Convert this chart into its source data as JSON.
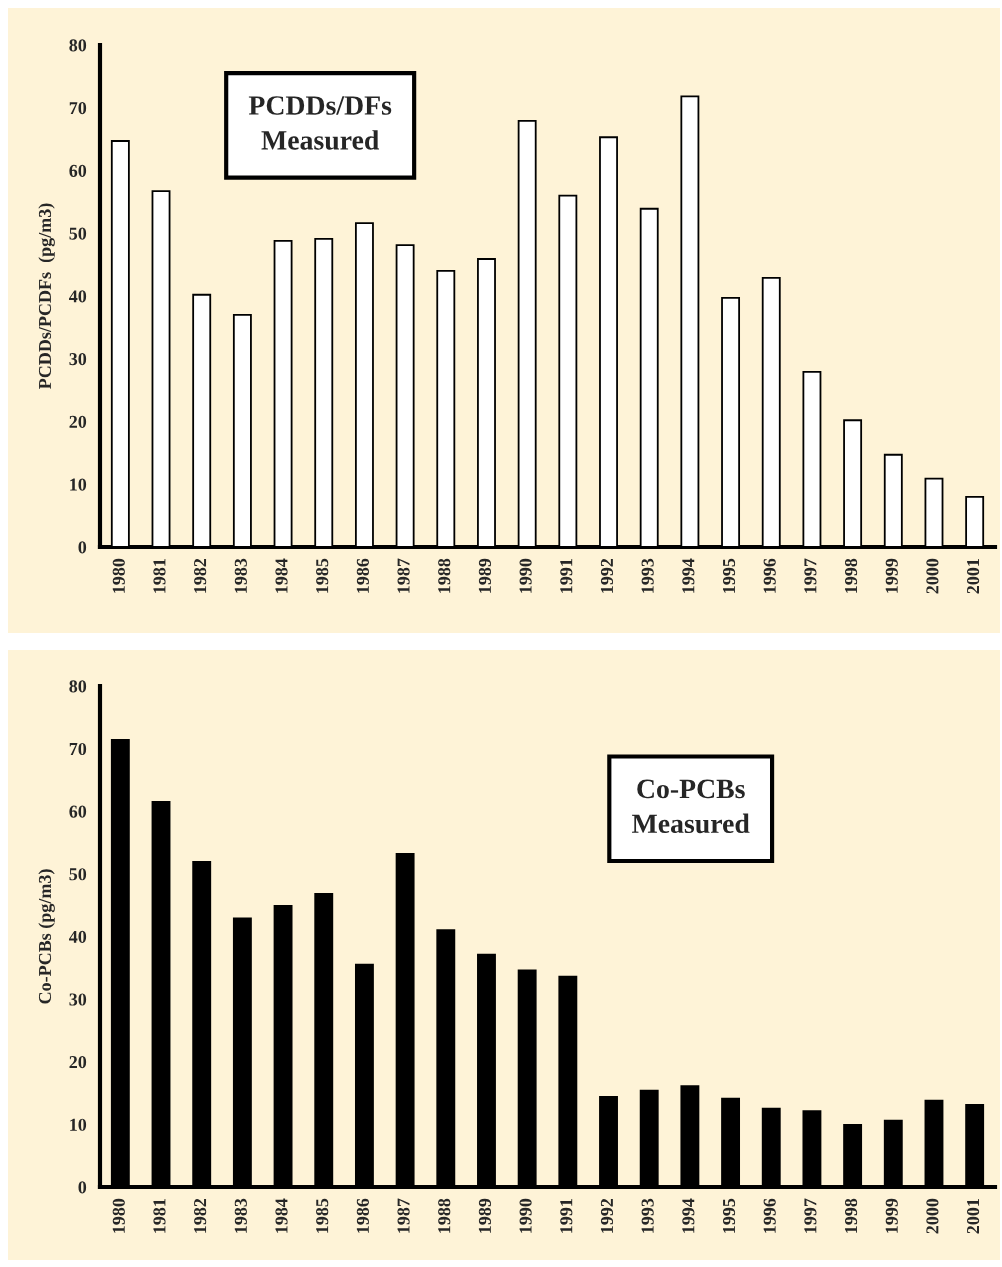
{
  "chart_data": [
    {
      "type": "bar",
      "ylabel": "PCDDs/PCDFs  (pg/m3)",
      "annotations": [
        "PCDDs/DFs\nMeasured"
      ],
      "categories": [
        "1980",
        "1981",
        "1982",
        "1983",
        "1984",
        "1985",
        "1986",
        "1987",
        "1988",
        "1989",
        "1990",
        "1991",
        "1992",
        "1993",
        "1994",
        "1995",
        "1996",
        "1997",
        "1998",
        "1999",
        "2000",
        "2001"
      ],
      "values": [
        64.7,
        56.7,
        40.2,
        37,
        48.8,
        49.1,
        51.6,
        48.1,
        44,
        45.9,
        67.9,
        56,
        65.3,
        53.9,
        71.8,
        39.7,
        42.9,
        27.9,
        20.2,
        14.7,
        10.9,
        8
      ],
      "color": "#ffffff",
      "ylim": [
        0,
        80
      ],
      "yticks": [
        0,
        10,
        20,
        30,
        40,
        50,
        60,
        70,
        80
      ]
    },
    {
      "type": "bar",
      "ylabel": "Co-PCBs (pg/m3)",
      "annotations": [
        "Co-PCBs\nMeasured"
      ],
      "categories": [
        "1980",
        "1981",
        "1982",
        "1983",
        "1984",
        "1985",
        "1986",
        "1987",
        "1988",
        "1989",
        "1990",
        "1991",
        "1992",
        "1993",
        "1994",
        "1995",
        "1996",
        "1997",
        "1998",
        "1999",
        "2000",
        "2001"
      ],
      "values": [
        71.4,
        61.5,
        51.9,
        42.9,
        44.9,
        46.8,
        35.5,
        53.2,
        41,
        37.1,
        34.6,
        33.6,
        14.4,
        15.4,
        16.1,
        14.1,
        12.5,
        12.1,
        9.9,
        10.6,
        13.8,
        13.1
      ],
      "color": "#000000",
      "ylim": [
        0,
        80
      ],
      "yticks": [
        0,
        10,
        20,
        30,
        40,
        50,
        60,
        70,
        80
      ]
    }
  ]
}
